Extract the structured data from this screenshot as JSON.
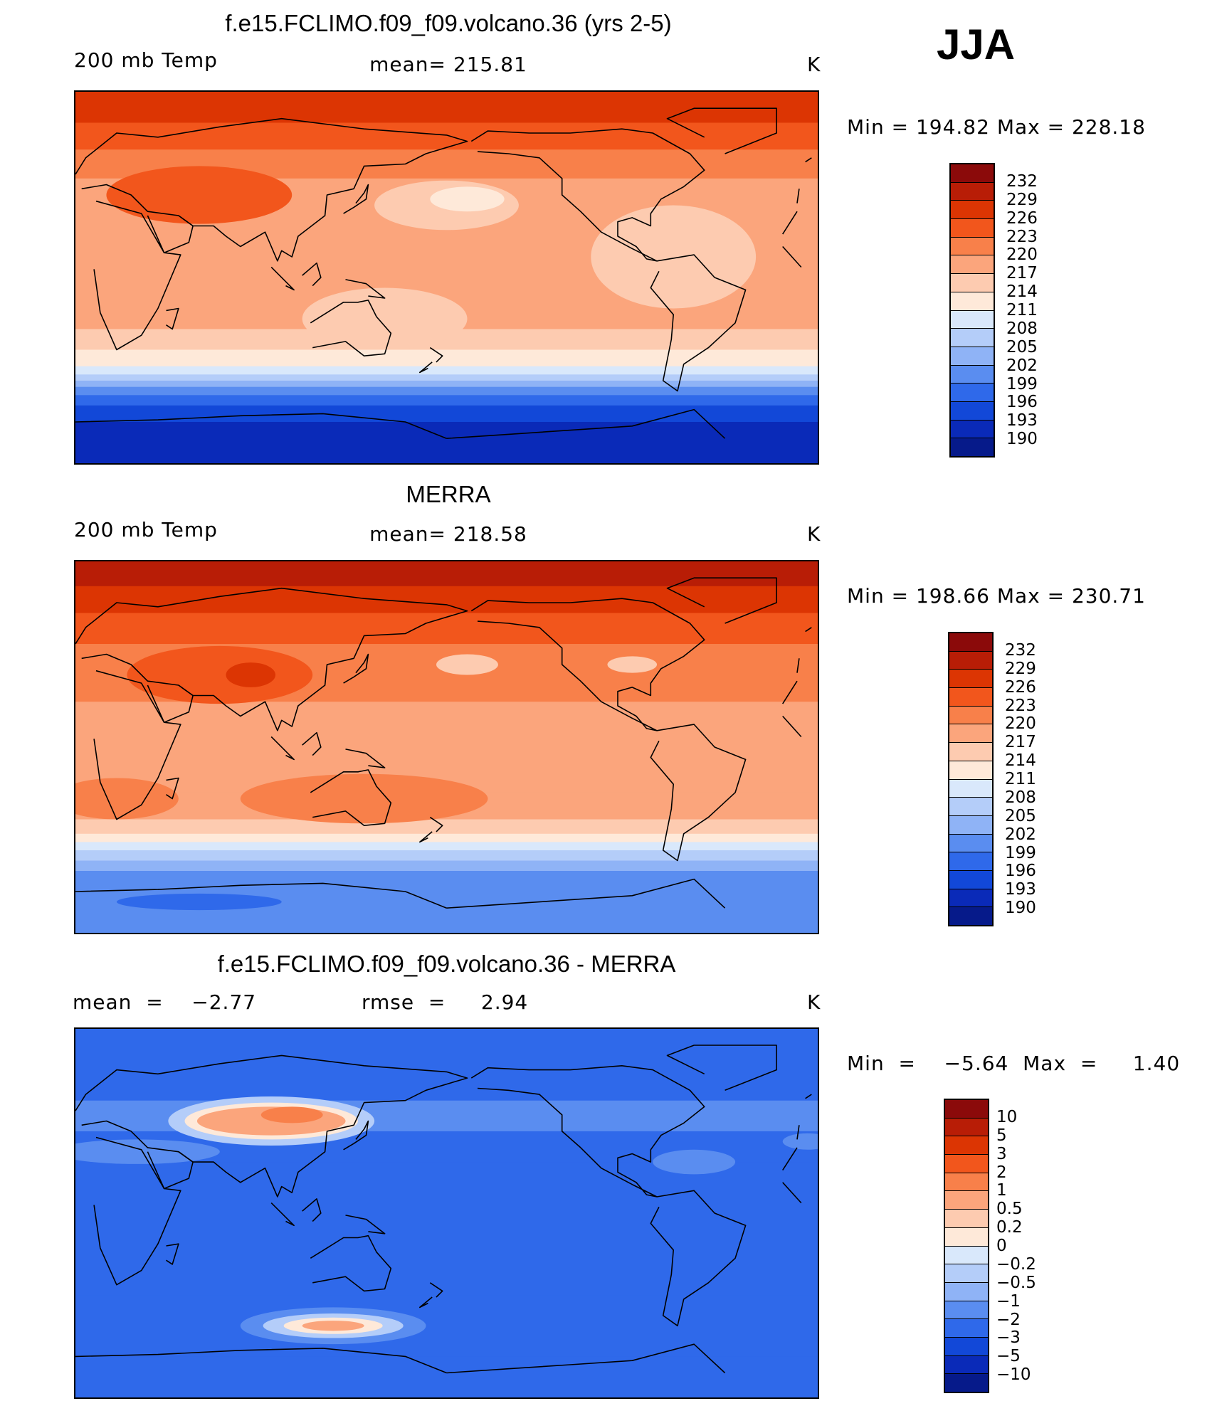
{
  "season": "JJA",
  "panels": [
    {
      "id": "model",
      "title": "f.e15.FCLIMO.f09_f09.volcano.36 (yrs 2-5)",
      "left_label": "200 mb Temp",
      "center_label": "mean=  215.81",
      "units": "K",
      "minmax": "Min  =  194.82  Max  =  228.18",
      "colorbar_labels": [
        "232",
        "229",
        "226",
        "223",
        "220",
        "217",
        "214",
        "211",
        "208",
        "205",
        "202",
        "199",
        "196",
        "193",
        "190"
      ],
      "colorbar_colors": [
        "#8b0a0a",
        "#b81d06",
        "#dc3503",
        "#f2561c",
        "#f8804a",
        "#fba57c",
        "#fdcbb0",
        "#fee9d9",
        "#d9e8fb",
        "#b4cdf9",
        "#8fb3f6",
        "#5a8df0",
        "#2f69ea",
        "#1248d8",
        "#0a2ab8",
        "#061a8a"
      ],
      "bands": [
        {
          "lat_start": 90,
          "color": "#dc3503"
        },
        {
          "lat_start": 75,
          "color": "#f2561c"
        },
        {
          "lat_start": 62,
          "color": "#f8804a"
        },
        {
          "lat_start": 48,
          "color": "#fba57c"
        },
        {
          "lat_start": 25,
          "color": "#fba57c"
        },
        {
          "lat_start": 5,
          "color": "#fba57c"
        },
        {
          "lat_start": -25,
          "color": "#fdcbb0"
        },
        {
          "lat_start": -35,
          "color": "#fee9d9"
        },
        {
          "lat_start": -43,
          "color": "#d9e8fb"
        },
        {
          "lat_start": -47,
          "color": "#b4cdf9"
        },
        {
          "lat_start": -50,
          "color": "#8fb3f6"
        },
        {
          "lat_start": -53,
          "color": "#5a8df0"
        },
        {
          "lat_start": -57,
          "color": "#2f69ea"
        },
        {
          "lat_start": -62,
          "color": "#1248d8"
        },
        {
          "lat_start": -70,
          "color": "#0a2ab8"
        }
      ],
      "blobs": [
        {
          "lon": 60,
          "lat": 40,
          "rx": 45,
          "ry": 14,
          "color": "#f2561c"
        },
        {
          "lon": 180,
          "lat": 35,
          "rx": 35,
          "ry": 12,
          "color": "#fdcbb0"
        },
        {
          "lon": 190,
          "lat": 38,
          "rx": 18,
          "ry": 6,
          "color": "#fee9d9"
        },
        {
          "lon": 290,
          "lat": 10,
          "rx": 40,
          "ry": 25,
          "color": "#fdcbb0"
        },
        {
          "lon": 150,
          "lat": -20,
          "rx": 40,
          "ry": 15,
          "color": "#fdcbb0"
        }
      ]
    },
    {
      "id": "obs",
      "title": "MERRA",
      "left_label": "200 mb Temp",
      "center_label": "mean=  218.58",
      "units": "K",
      "minmax": "Min  =  198.66  Max  =  230.71",
      "colorbar_labels": [
        "232",
        "229",
        "226",
        "223",
        "220",
        "217",
        "214",
        "211",
        "208",
        "205",
        "202",
        "199",
        "196",
        "193",
        "190"
      ],
      "colorbar_colors": [
        "#8b0a0a",
        "#b81d06",
        "#dc3503",
        "#f2561c",
        "#f8804a",
        "#fba57c",
        "#fdcbb0",
        "#fee9d9",
        "#d9e8fb",
        "#b4cdf9",
        "#8fb3f6",
        "#5a8df0",
        "#2f69ea",
        "#1248d8",
        "#0a2ab8",
        "#061a8a"
      ],
      "bands": [
        {
          "lat_start": 90,
          "color": "#b81d06"
        },
        {
          "lat_start": 78,
          "color": "#dc3503"
        },
        {
          "lat_start": 65,
          "color": "#f2561c"
        },
        {
          "lat_start": 50,
          "color": "#f8804a"
        },
        {
          "lat_start": 22,
          "color": "#fba57c"
        },
        {
          "lat_start": -22,
          "color": "#fba57c"
        },
        {
          "lat_start": -35,
          "color": "#fdcbb0"
        },
        {
          "lat_start": -42,
          "color": "#fee9d9"
        },
        {
          "lat_start": -46,
          "color": "#d9e8fb"
        },
        {
          "lat_start": -50,
          "color": "#b4cdf9"
        },
        {
          "lat_start": -55,
          "color": "#8fb3f6"
        },
        {
          "lat_start": -60,
          "color": "#5a8df0"
        }
      ],
      "blobs": [
        {
          "lon": 70,
          "lat": 35,
          "rx": 45,
          "ry": 14,
          "color": "#f2561c"
        },
        {
          "lon": 85,
          "lat": 35,
          "rx": 12,
          "ry": 6,
          "color": "#dc3503"
        },
        {
          "lon": 140,
          "lat": -25,
          "rx": 60,
          "ry": 12,
          "color": "#f8804a"
        },
        {
          "lon": 20,
          "lat": -25,
          "rx": 30,
          "ry": 10,
          "color": "#f8804a"
        },
        {
          "lon": 190,
          "lat": 40,
          "rx": 15,
          "ry": 5,
          "color": "#fdcbb0"
        },
        {
          "lon": 270,
          "lat": 40,
          "rx": 12,
          "ry": 4,
          "color": "#fdcbb0"
        },
        {
          "lon": 60,
          "lat": -75,
          "rx": 40,
          "ry": 4,
          "color": "#2f69ea"
        }
      ]
    },
    {
      "id": "diff",
      "title": "f.e15.FCLIMO.f09_f09.volcano.36 - MERRA",
      "left_label": "mean  =    −2.77",
      "center_label": "rmse  =     2.94",
      "units": "K",
      "minmax": "Min  =    −5.64  Max  =     1.40",
      "colorbar_labels": [
        "10",
        "5",
        "3",
        "2",
        "1",
        "0.5",
        "0.2",
        "0",
        "−0.2",
        "−0.5",
        "−1",
        "−2",
        "−3",
        "−5",
        "−10"
      ],
      "colorbar_colors": [
        "#8b0a0a",
        "#b81d06",
        "#dc3503",
        "#f2561c",
        "#f8804a",
        "#fba57c",
        "#fdcbb0",
        "#fee9d9",
        "#d9e8fb",
        "#b4cdf9",
        "#8fb3f6",
        "#5a8df0",
        "#2f69ea",
        "#1248d8",
        "#0a2ab8",
        "#061a8a"
      ],
      "bands": [
        {
          "lat_start": 90,
          "color": "#2f69ea"
        },
        {
          "lat_start": 55,
          "color": "#5a8df0"
        },
        {
          "lat_start": 40,
          "color": "#2f69ea"
        },
        {
          "lat_start": 25,
          "color": "#2f69ea"
        },
        {
          "lat_start": -40,
          "color": "#2f69ea"
        },
        {
          "lat_start": -70,
          "color": "#2f69ea"
        }
      ],
      "blobs": [
        {
          "lon": 95,
          "lat": 45,
          "rx": 50,
          "ry": 12,
          "color": "#b4cdf9"
        },
        {
          "lon": 95,
          "lat": 45,
          "rx": 42,
          "ry": 9,
          "color": "#fee9d9"
        },
        {
          "lon": 95,
          "lat": 45,
          "rx": 36,
          "ry": 7,
          "color": "#fba57c"
        },
        {
          "lon": 105,
          "lat": 48,
          "rx": 15,
          "ry": 4,
          "color": "#f8804a"
        },
        {
          "lon": 30,
          "lat": 30,
          "rx": 40,
          "ry": 6,
          "color": "#5a8df0"
        },
        {
          "lon": 125,
          "lat": -55,
          "rx": 45,
          "ry": 9,
          "color": "#5a8df0"
        },
        {
          "lon": 125,
          "lat": -55,
          "rx": 34,
          "ry": 6,
          "color": "#b4cdf9"
        },
        {
          "lon": 125,
          "lat": -55,
          "rx": 24,
          "ry": 4,
          "color": "#fee9d9"
        },
        {
          "lon": 125,
          "lat": -55,
          "rx": 15,
          "ry": 2.5,
          "color": "#fba57c"
        },
        {
          "lon": 300,
          "lat": 25,
          "rx": 20,
          "ry": 6,
          "color": "#5a8df0"
        },
        {
          "lon": 355,
          "lat": 35,
          "rx": 12,
          "ry": 4,
          "color": "#5a8df0"
        }
      ]
    }
  ]
}
